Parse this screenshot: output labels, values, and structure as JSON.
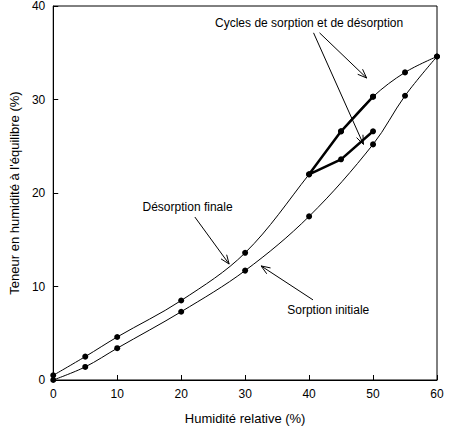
{
  "chart_data": {
    "type": "line",
    "x_label": "Humidité relative (%)",
    "y_label": "Teneur en humidité à l'équilibre (%)",
    "xlim": [
      0,
      60
    ],
    "xticks": [
      0,
      10,
      20,
      30,
      40,
      50,
      60
    ],
    "ylim": [
      0,
      40
    ],
    "yticks": [
      0,
      10,
      20,
      30,
      40
    ],
    "grid": false,
    "marker": "circle",
    "color": "#000000",
    "series": [
      {
        "name": "Sorption initiale",
        "color": "#000000",
        "line_style": "solid",
        "x": [
          0,
          5,
          10,
          20,
          30,
          40,
          50,
          55,
          60
        ],
        "values": [
          0,
          1.4,
          3.4,
          7.3,
          11.7,
          17.5,
          25.2,
          30.4,
          34.6
        ]
      },
      {
        "name": "Désorption finale",
        "color": "#000000",
        "line_style": "solid",
        "x": [
          60,
          55,
          50,
          45,
          40,
          30,
          20,
          10,
          5,
          0
        ],
        "values": [
          34.6,
          32.9,
          30.3,
          26.6,
          22.0,
          13.6,
          8.5,
          4.6,
          2.5,
          0.5
        ]
      },
      {
        "name": "Cycles de sorption et de désorption",
        "color": "#000000",
        "line_style": "bold",
        "x": [
          50,
          45,
          40,
          45,
          50
        ],
        "values": [
          30.3,
          26.6,
          22.0,
          23.6,
          26.6
        ]
      }
    ],
    "annotations": [
      {
        "text": "Cycles de sorption et de désorption",
        "xytext": [
          40,
          38.2
        ],
        "xy": [
          [
            49,
            32.3
          ],
          [
            48.5,
            25.2
          ]
        ]
      },
      {
        "text": "Désorption finale",
        "xytext": [
          21,
          18.5
        ],
        "xy": [
          [
            27.5,
            12.4
          ]
        ]
      },
      {
        "text": "Sorption initiale",
        "xytext": [
          43,
          7.5
        ],
        "xy": [
          [
            32.5,
            12.2
          ]
        ]
      }
    ]
  }
}
